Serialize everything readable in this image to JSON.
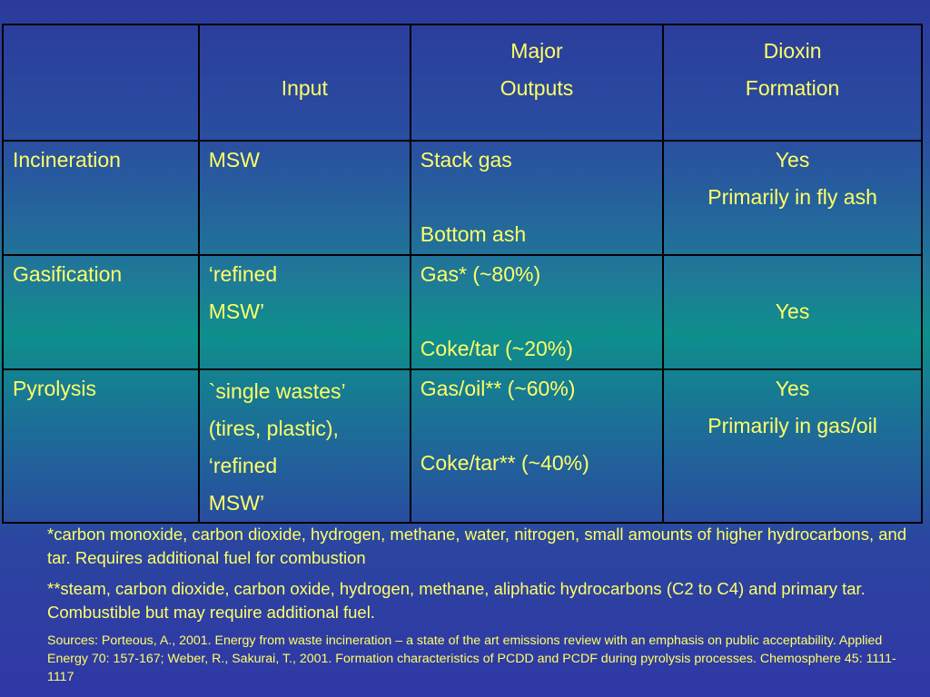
{
  "table": {
    "headers": [
      "",
      "Input",
      "Major\nOutputs",
      "Dioxin\nFormation"
    ],
    "header_lines": {
      "input": "Input",
      "outputs_1": "Major",
      "outputs_2": "Outputs",
      "dioxin_1": "Dioxin",
      "dioxin_2": "Formation"
    },
    "rows": [
      {
        "process": "Incineration",
        "input": [
          "MSW"
        ],
        "outputs": [
          "Stack gas",
          "Bottom ash"
        ],
        "dioxin": [
          "Yes",
          "Primarily in fly ash"
        ]
      },
      {
        "process": "Gasification",
        "input": [
          "‘refined",
          "MSW’"
        ],
        "outputs": [
          "Gas* (~80%)",
          "Coke/tar (~20%)"
        ],
        "dioxin": [
          "Yes"
        ]
      },
      {
        "process": "Pyrolysis",
        "input": [
          "`single wastes’",
          "(tires, plastic),",
          "‘refined",
          "MSW’"
        ],
        "outputs": [
          "Gas/oil** (~60%)",
          "Coke/tar** (~40%)"
        ],
        "dioxin": [
          "Yes",
          "Primarily in gas/oil"
        ]
      }
    ]
  },
  "notes": {
    "note1": "*carbon monoxide, carbon dioxide, hydrogen, methane, water, nitrogen, small amounts of higher hydrocarbons, and tar. Requires additional fuel for combustion",
    "note2": "**steam, carbon dioxide, carbon oxide, hydrogen, methane, aliphatic hydrocarbons (C2 to C4) and primary tar. Combustible but may require additional fuel.",
    "sources": "Sources: Porteous, A., 2001.  Energy from waste incineration – a state of the art emissions review with an emphasis on public acceptability.  Applied Energy 70: 157-167; Weber, R., Sakurai, T., 2001.  Formation characteristics of PCDD and PCDF during pyrolysis processes.  Chemosphere 45: 1111-1117"
  },
  "colors": {
    "text": "#ffff66",
    "background_top": "#2b3a9c",
    "background_mid": "#0e8f8c",
    "border": "#000000"
  }
}
